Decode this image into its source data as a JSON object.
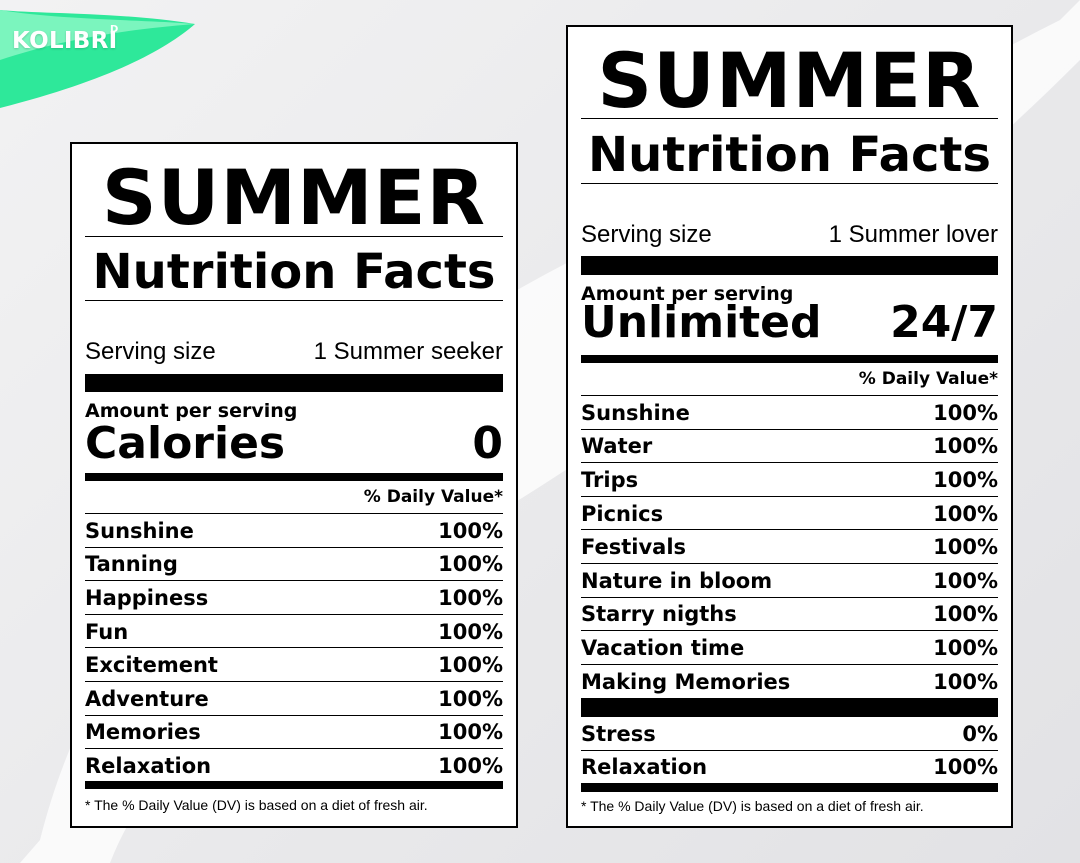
{
  "brand": {
    "logo_text": "KOLIBRI",
    "logo_mark": "D",
    "accent_color": "#2ee89a"
  },
  "left_label": {
    "title": "SUMMER",
    "subtitle": "Nutrition Facts",
    "serving_label": "Serving size",
    "serving_value": "1 Summer seeker",
    "amount_label": "Amount per serving",
    "calories_label": "Calories",
    "calories_value": "0",
    "dv_header": "% Daily Value*",
    "rows": [
      {
        "name": "Sunshine",
        "value": "100%"
      },
      {
        "name": "Tanning",
        "value": "100%"
      },
      {
        "name": "Happiness",
        "value": "100%"
      },
      {
        "name": "Fun",
        "value": "100%"
      },
      {
        "name": "Excitement",
        "value": "100%"
      },
      {
        "name": "Adventure",
        "value": "100%"
      },
      {
        "name": "Memories",
        "value": "100%"
      },
      {
        "name": "Relaxation",
        "value": "100%"
      }
    ],
    "footnote": "* The % Daily Value (DV) is based on a diet of fresh air."
  },
  "right_label": {
    "title": "SUMMER",
    "subtitle": "Nutrition Facts",
    "serving_label": "Serving size",
    "serving_value": "1 Summer lover",
    "amount_label": "Amount per serving",
    "calories_label": "Unlimited",
    "calories_value": "24/7",
    "dv_header": "% Daily Value*",
    "rows": [
      {
        "name": "Sunshine",
        "value": "100%"
      },
      {
        "name": "Water",
        "value": "100%"
      },
      {
        "name": "Trips",
        "value": "100%"
      },
      {
        "name": "Picnics",
        "value": "100%"
      },
      {
        "name": "Festivals",
        "value": "100%"
      },
      {
        "name": "Nature in bloom",
        "value": "100%"
      },
      {
        "name": "Starry nigths",
        "value": "100%"
      },
      {
        "name": "Vacation time",
        "value": "100%"
      },
      {
        "name": "Making Memories",
        "value": "100%"
      }
    ],
    "extra_rows": [
      {
        "name": "Stress",
        "value": "0%"
      },
      {
        "name": "Relaxation",
        "value": "100%"
      }
    ],
    "footnote": "* The % Daily Value (DV) is based on a diet of fresh air."
  }
}
